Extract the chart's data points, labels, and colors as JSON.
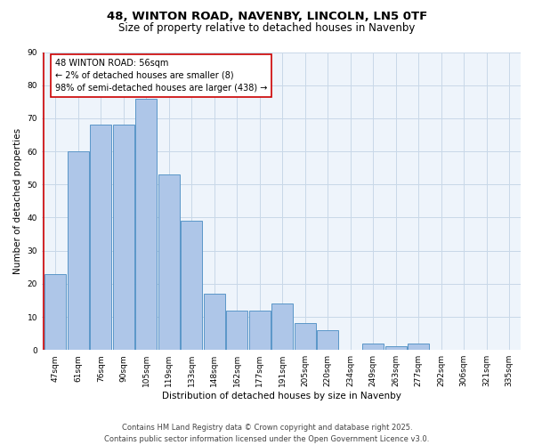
{
  "title": "48, WINTON ROAD, NAVENBY, LINCOLN, LN5 0TF",
  "subtitle": "Size of property relative to detached houses in Navenby",
  "xlabel": "Distribution of detached houses by size in Navenby",
  "ylabel": "Number of detached properties",
  "categories": [
    "47sqm",
    "61sqm",
    "76sqm",
    "90sqm",
    "105sqm",
    "119sqm",
    "133sqm",
    "148sqm",
    "162sqm",
    "177sqm",
    "191sqm",
    "205sqm",
    "220sqm",
    "234sqm",
    "249sqm",
    "263sqm",
    "277sqm",
    "292sqm",
    "306sqm",
    "321sqm",
    "335sqm"
  ],
  "values": [
    23,
    60,
    68,
    68,
    76,
    53,
    39,
    17,
    12,
    12,
    14,
    8,
    6,
    0,
    2,
    1,
    2,
    0,
    0,
    0,
    0
  ],
  "bar_color": "#aec6e8",
  "bar_edge_color": "#5a96c8",
  "highlight_line_color": "#cc0000",
  "annotation_text": "48 WINTON ROAD: 56sqm\n← 2% of detached houses are smaller (8)\n98% of semi-detached houses are larger (438) →",
  "annotation_box_color": "#ffffff",
  "annotation_box_edge": "#cc0000",
  "ylim": [
    0,
    90
  ],
  "yticks": [
    0,
    10,
    20,
    30,
    40,
    50,
    60,
    70,
    80,
    90
  ],
  "grid_color": "#c8d8e8",
  "background_color": "#eef4fb",
  "footer": "Contains HM Land Registry data © Crown copyright and database right 2025.\nContains public sector information licensed under the Open Government Licence v3.0.",
  "title_fontsize": 9.5,
  "subtitle_fontsize": 8.5,
  "axis_label_fontsize": 7.5,
  "tick_fontsize": 6.5,
  "annotation_fontsize": 7,
  "footer_fontsize": 6
}
